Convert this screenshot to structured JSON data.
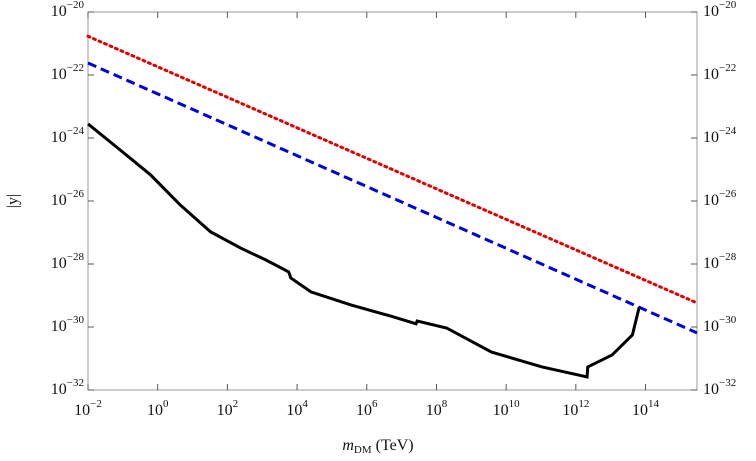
{
  "chart_data": {
    "type": "line",
    "x_label": "mDM (TeV)",
    "y_label": "|y|",
    "x_log": true,
    "y_log": true,
    "xlim": [
      0.01,
      3000000000000000.0
    ],
    "ylim": [
      1e-32,
      1e-20
    ],
    "xticks": [
      {
        "value": 0.01,
        "label": "10−2"
      },
      {
        "value": 1,
        "label": "100"
      },
      {
        "value": 100.0,
        "label": "102"
      },
      {
        "value": 10000.0,
        "label": "104"
      },
      {
        "value": 1000000.0,
        "label": "106"
      },
      {
        "value": 100000000.0,
        "label": "108"
      },
      {
        "value": 10000000000.0,
        "label": "1010"
      },
      {
        "value": 1000000000000.0,
        "label": "1012"
      },
      {
        "value": 100000000000000.0,
        "label": "1014"
      }
    ],
    "yticks": [
      {
        "value": 1e-32,
        "label": "10−32"
      },
      {
        "value": 1e-30,
        "label": "10−30"
      },
      {
        "value": 1e-28,
        "label": "10−28"
      },
      {
        "value": 1e-26,
        "label": "10−26"
      },
      {
        "value": 1e-24,
        "label": "10−24"
      },
      {
        "value": 1e-22,
        "label": "10−22"
      },
      {
        "value": 1e-20,
        "label": "10−20"
      }
    ],
    "series": [
      {
        "color": "#e00000",
        "dash": "dotted",
        "x": [
          0.01,
          3000000000000000.0
        ],
        "values": [
          1.7e-21,
          5.8e-30
        ]
      },
      {
        "color": "#0000dd",
        "dash": "dashed",
        "x": [
          0.01,
          3000000000000000.0
        ],
        "values": [
          2.4e-22,
          6.5e-31
        ]
      },
      {
        "color": "#000000",
        "dash": "solid",
        "x": [
          0.01,
          0.083,
          0.62,
          4.5,
          33,
          240,
          1260,
          5750,
          6600,
          25000,
          350000,
          5000000,
          26000000,
          28000000,
          195000000,
          3800000000,
          107000000000,
          2100000000000,
          2200000000000,
          11000000000000,
          42000000000000,
          66000000000000
        ],
        "values": [
          2.8e-24,
          4.2e-25,
          6.8e-26,
          7.4e-27,
          1.05e-27,
          3.2e-28,
          1.35e-28,
          5.6e-29,
          3.6e-29,
          1.3e-29,
          5e-30,
          2.2e-30,
          1.26e-30,
          1.55e-30,
          9.3e-31,
          1.6e-31,
          5.4e-32,
          2.6e-32,
          5.4e-32,
          1.3e-31,
          5.6e-31,
          4.3e-30
        ]
      }
    ]
  }
}
